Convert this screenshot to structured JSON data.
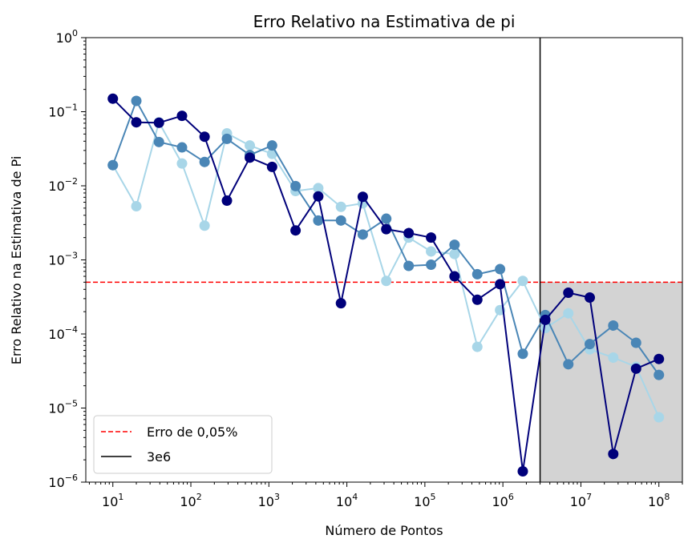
{
  "chart_data": {
    "type": "line",
    "title": "Erro Relativo na Estimativa de pi",
    "xlabel": "Número de Pontos",
    "ylabel": "Erro Relativo na Estimativa de Pi",
    "xscale": "log",
    "yscale": "log",
    "xlim": [
      4.5,
      200000000.0
    ],
    "ylim": [
      1e-06,
      1
    ],
    "x": [
      10,
      20,
      39,
      77,
      150,
      290,
      570,
      1100,
      2200,
      4300,
      8400,
      16000,
      32000,
      62000,
      120000,
      240000,
      470000,
      920000,
      1800000,
      3500000,
      6900000,
      13000000,
      26000000,
      51000000,
      100000000
    ],
    "series": [
      {
        "color": "#00007a",
        "values": [
          0.15,
          0.072,
          0.071,
          0.088,
          0.046,
          0.0063,
          0.024,
          0.018,
          0.0025,
          0.0072,
          0.00026,
          0.0071,
          0.0026,
          0.0023,
          0.002,
          0.0006,
          0.00029,
          0.00047,
          1.4e-06,
          0.000155,
          0.00036,
          0.00031,
          2.4e-06,
          3.4e-05,
          4.6e-05
        ]
      },
      {
        "color": "#4a86b6",
        "values": [
          0.019,
          0.14,
          0.039,
          0.033,
          0.021,
          0.043,
          0.026,
          0.035,
          0.0099,
          0.0034,
          0.0034,
          0.0022,
          0.0036,
          0.00083,
          0.00086,
          0.0016,
          0.00064,
          0.00075,
          5.4e-05,
          0.00018,
          3.9e-05,
          7.3e-05,
          0.00013,
          7.6e-05,
          2.8e-05
        ]
      },
      {
        "color": "#a8d6e8",
        "values": [
          0.019,
          0.0053,
          0.072,
          0.02,
          0.0029,
          0.051,
          0.035,
          0.027,
          0.0085,
          0.0093,
          0.0052,
          0.0058,
          0.00052,
          0.002,
          0.0013,
          0.0012,
          6.7e-05,
          0.00021,
          0.00052,
          0.00012,
          0.00019,
          6.2e-05,
          4.8e-05,
          3.6e-05,
          7.5e-06
        ]
      }
    ],
    "hline": {
      "y": 0.0005,
      "color": "#ff0000",
      "style": "dashed",
      "label": "Erro de 0,05%"
    },
    "vline": {
      "x": 3000000,
      "color": "#000000",
      "style": "solid",
      "label": "3e6"
    },
    "shaded_region": {
      "x_from": 3000000,
      "y_to": 0.0005,
      "color": "#d3d3d3"
    },
    "x_ticks": [
      {
        "value": 10,
        "base": "10",
        "exp": "1"
      },
      {
        "value": 100,
        "base": "10",
        "exp": "2"
      },
      {
        "value": 1000,
        "base": "10",
        "exp": "3"
      },
      {
        "value": 10000,
        "base": "10",
        "exp": "4"
      },
      {
        "value": 100000,
        "base": "10",
        "exp": "5"
      },
      {
        "value": 1000000,
        "base": "10",
        "exp": "6"
      },
      {
        "value": 10000000,
        "base": "10",
        "exp": "7"
      },
      {
        "value": 100000000,
        "base": "10",
        "exp": "8"
      }
    ],
    "y_ticks": [
      {
        "value": 1e-06,
        "base": "10",
        "exp": "−6"
      },
      {
        "value": 1e-05,
        "base": "10",
        "exp": "−5"
      },
      {
        "value": 0.0001,
        "base": "10",
        "exp": "−4"
      },
      {
        "value": 0.001,
        "base": "10",
        "exp": "−3"
      },
      {
        "value": 0.01,
        "base": "10",
        "exp": "−2"
      },
      {
        "value": 0.1,
        "base": "10",
        "exp": "−1"
      },
      {
        "value": 1,
        "base": "10",
        "exp": "0"
      }
    ],
    "legend": {
      "position": "lower-left"
    }
  }
}
